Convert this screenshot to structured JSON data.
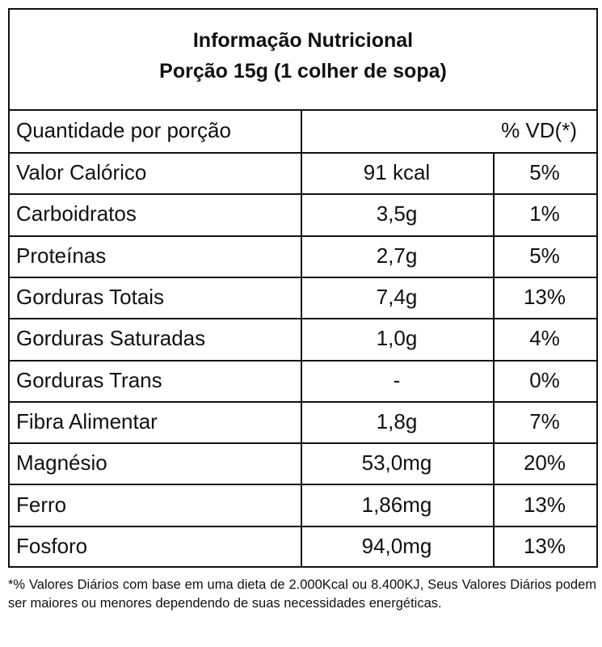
{
  "header": {
    "title": [
      "Informação Nutricional",
      "Porção 15g (1 colher de sopa)"
    ]
  },
  "table": {
    "header": [
      "Quantidade por porção",
      "% VD(*)"
    ],
    "rows": [
      [
        "Valor Calórico",
        "91 kcal",
        "5%"
      ],
      [
        "Carboidratos",
        "3,5g",
        "1%"
      ],
      [
        "Proteínas",
        "2,7g",
        "5%"
      ],
      [
        "Gorduras Totais",
        "7,4g",
        "13%"
      ],
      [
        "Gorduras Saturadas",
        "1,0g",
        "4%"
      ],
      [
        "Gorduras Trans",
        "-",
        "0%"
      ],
      [
        "Fibra Alimentar",
        "1,8g",
        "7%"
      ],
      [
        "Magnésio",
        "53,0mg",
        "20%"
      ],
      [
        "Ferro",
        "1,86mg",
        "13%"
      ],
      [
        "Fosforo",
        "94,0mg",
        "13%"
      ]
    ]
  },
  "footnote": "*% Valores Diários com base em uma dieta de 2.000Kcal ou 8.400KJ, Seus Valores Diários podem ser maiores ou menores dependendo de suas necessidades energéticas."
}
